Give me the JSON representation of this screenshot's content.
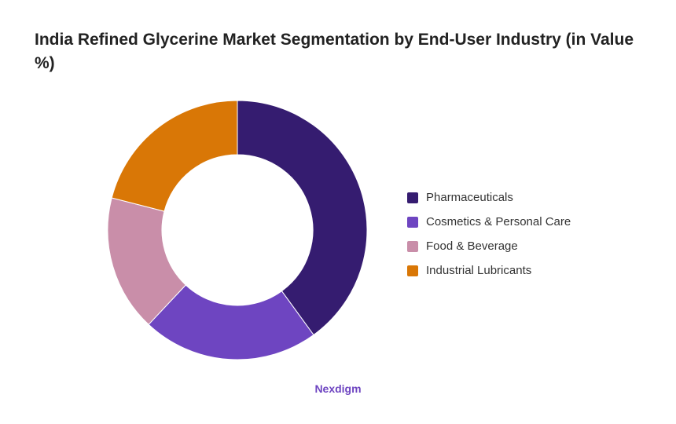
{
  "chart_data": {
    "type": "pie",
    "variant": "donut",
    "title": "India Refined Glycerine Market Segmentation by End-User Industry (in Value %)",
    "categories": [
      "Pharmaceuticals",
      "Cosmetics & Personal Care",
      "Food & Beverage",
      "Industrial Lubricants"
    ],
    "values": [
      40,
      22,
      17,
      21
    ],
    "colors": [
      "#351c70",
      "#6e45c1",
      "#c98ea9",
      "#d97706"
    ],
    "legend_position": "right",
    "start_angle": "top",
    "direction": "clockwise"
  },
  "brand": {
    "label": "Nexdigm",
    "color": "#6e45c1"
  }
}
